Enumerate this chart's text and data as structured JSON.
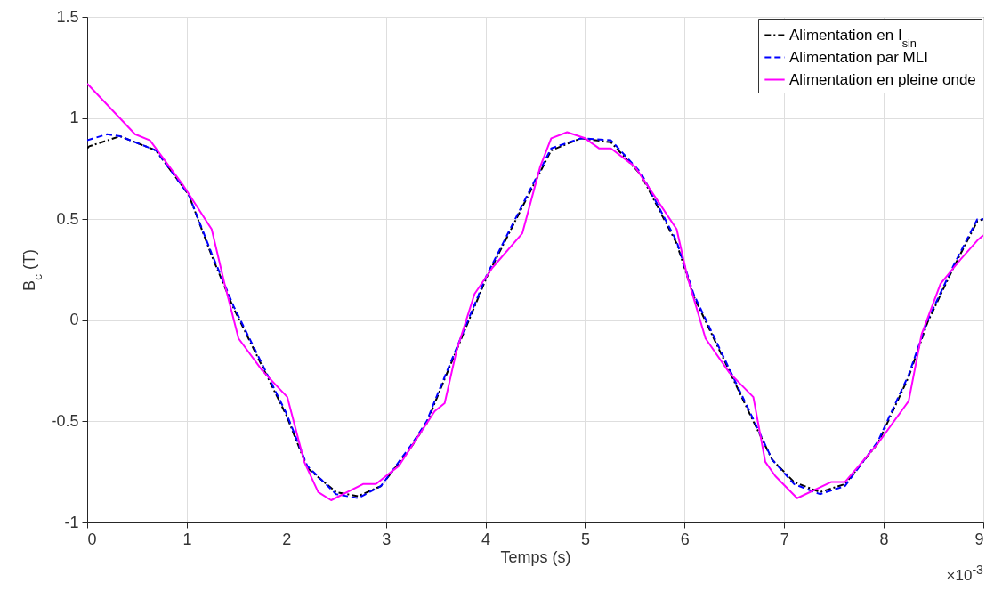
{
  "chart_data": {
    "type": "line",
    "xlabel": "Temps (s)",
    "ylabel": "B$_{c}$ (T)",
    "annotations": [
      "×10$^{-3}$"
    ],
    "xlim": [
      0,
      9
    ],
    "xticks": [
      0,
      1,
      2,
      3,
      4,
      5,
      6,
      7,
      8,
      9
    ],
    "ylim": [
      -1,
      1.5
    ],
    "yticks": [
      -1,
      -0.5,
      0,
      0.5,
      1,
      1.5
    ],
    "grid": true,
    "legend": "top right",
    "series": [
      {
        "name": "Alimentation en I$_{sin}$",
        "color": "#000000",
        "line_style": "dashdot",
        "x": [
          0,
          0.02,
          0.33,
          0.69,
          1.02,
          1.25,
          1.47,
          1.76,
          2.0,
          2.21,
          2.5,
          2.72,
          2.95,
          3.25,
          3.41,
          3.49,
          3.59,
          4.01,
          4.37,
          4.66,
          4.96,
          5.26,
          5.56,
          5.92,
          6.09,
          6.39,
          6.69,
          6.88,
          7.1,
          7.36,
          7.61,
          7.94,
          8.25,
          8.44,
          8.7,
          8.94,
          9
        ],
        "values": [
          0.85,
          0.86,
          0.91,
          0.84,
          0.62,
          0.32,
          0.06,
          -0.23,
          -0.47,
          -0.73,
          -0.85,
          -0.87,
          -0.82,
          -0.63,
          -0.51,
          -0.41,
          -0.29,
          0.21,
          0.56,
          0.84,
          0.9,
          0.88,
          0.72,
          0.38,
          0.12,
          -0.19,
          -0.5,
          -0.69,
          -0.8,
          -0.85,
          -0.81,
          -0.61,
          -0.28,
          -0.01,
          0.26,
          0.49,
          0.5
        ]
      },
      {
        "name": "Alimentation par MLI",
        "color": "#0000ff",
        "line_style": "dashed",
        "x": [
          0,
          0.2,
          0.33,
          0.69,
          1.02,
          1.25,
          1.47,
          1.76,
          2.0,
          2.21,
          2.5,
          2.72,
          2.95,
          3.25,
          3.41,
          3.49,
          3.59,
          4.01,
          4.37,
          4.66,
          4.96,
          5.26,
          5.56,
          5.92,
          6.09,
          6.39,
          6.69,
          6.88,
          7.1,
          7.36,
          7.61,
          7.94,
          8.25,
          8.44,
          8.7,
          8.94,
          9
        ],
        "values": [
          0.89,
          0.92,
          0.91,
          0.84,
          0.62,
          0.33,
          0.07,
          -0.22,
          -0.46,
          -0.72,
          -0.86,
          -0.88,
          -0.82,
          -0.62,
          -0.5,
          -0.4,
          -0.28,
          0.22,
          0.57,
          0.85,
          0.9,
          0.89,
          0.73,
          0.39,
          0.13,
          -0.18,
          -0.49,
          -0.69,
          -0.81,
          -0.86,
          -0.82,
          -0.6,
          -0.27,
          0,
          0.27,
          0.5,
          0.5
        ]
      },
      {
        "name": "Alimentation en pleine onde",
        "color": "#ff00ff",
        "line_style": "solid",
        "x": [
          0,
          0.48,
          0.63,
          0.96,
          1.25,
          1.38,
          1.52,
          1.76,
          2.01,
          2.18,
          2.32,
          2.45,
          2.77,
          2.9,
          3.13,
          3.49,
          3.59,
          3.71,
          3.89,
          4.07,
          4.37,
          4.55,
          4.66,
          4.82,
          5.0,
          5.14,
          5.26,
          5.5,
          5.92,
          6.03,
          6.21,
          6.45,
          6.69,
          6.81,
          6.91,
          7.13,
          7.47,
          7.61,
          7.94,
          8.25,
          8.38,
          8.57,
          8.77,
          8.95,
          9
        ],
        "values": [
          1.17,
          0.92,
          0.89,
          0.67,
          0.45,
          0.18,
          -0.09,
          -0.25,
          -0.38,
          -0.7,
          -0.85,
          -0.89,
          -0.81,
          -0.81,
          -0.72,
          -0.45,
          -0.41,
          -0.15,
          0.13,
          0.26,
          0.43,
          0.76,
          0.9,
          0.93,
          0.9,
          0.85,
          0.85,
          0.76,
          0.45,
          0.21,
          -0.09,
          -0.26,
          -0.38,
          -0.7,
          -0.77,
          -0.88,
          -0.8,
          -0.8,
          -0.61,
          -0.4,
          -0.07,
          0.18,
          0.3,
          0.4,
          0.42
        ]
      }
    ]
  }
}
